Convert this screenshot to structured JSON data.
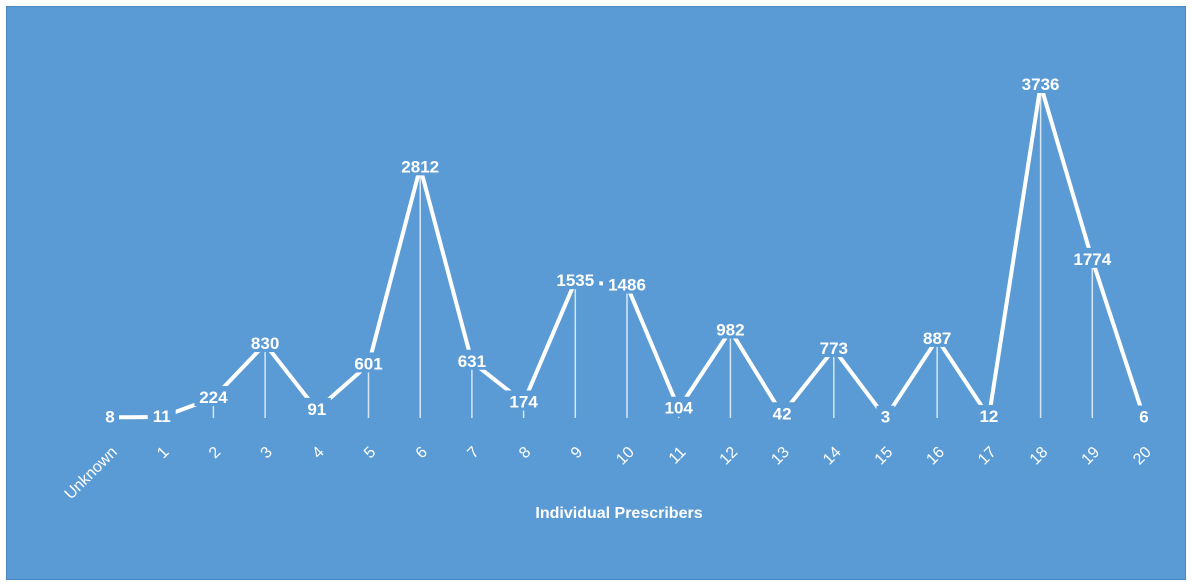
{
  "chart_data": {
    "type": "line",
    "title": "",
    "xlabel": "Individual Prescribers",
    "ylabel": "",
    "categories": [
      "Unknown",
      "1",
      "2",
      "3",
      "4",
      "5",
      "6",
      "7",
      "8",
      "9",
      "10",
      "11",
      "12",
      "13",
      "14",
      "15",
      "16",
      "17",
      "18",
      "19",
      "20"
    ],
    "series": [
      {
        "values": [
          8,
          11,
          224,
          830,
          91,
          601,
          2812,
          631,
          174,
          1535,
          1486,
          104,
          982,
          42,
          773,
          3,
          887,
          12,
          3736,
          1774,
          6
        ]
      }
    ],
    "data_labels": [
      "8",
      "11",
      "224",
      "830",
      "91",
      "601",
      "2812",
      "631",
      "174",
      "1535",
      "1486",
      "104",
      "982",
      "42",
      "773",
      "3",
      "887",
      "12",
      "3736",
      "1774",
      "6"
    ],
    "ylim": [
      0,
      3736
    ],
    "grid": false,
    "legend": "none",
    "colors": {
      "background": "#5b9bd5",
      "line": "#ffffff",
      "text": "#ffffff"
    }
  }
}
